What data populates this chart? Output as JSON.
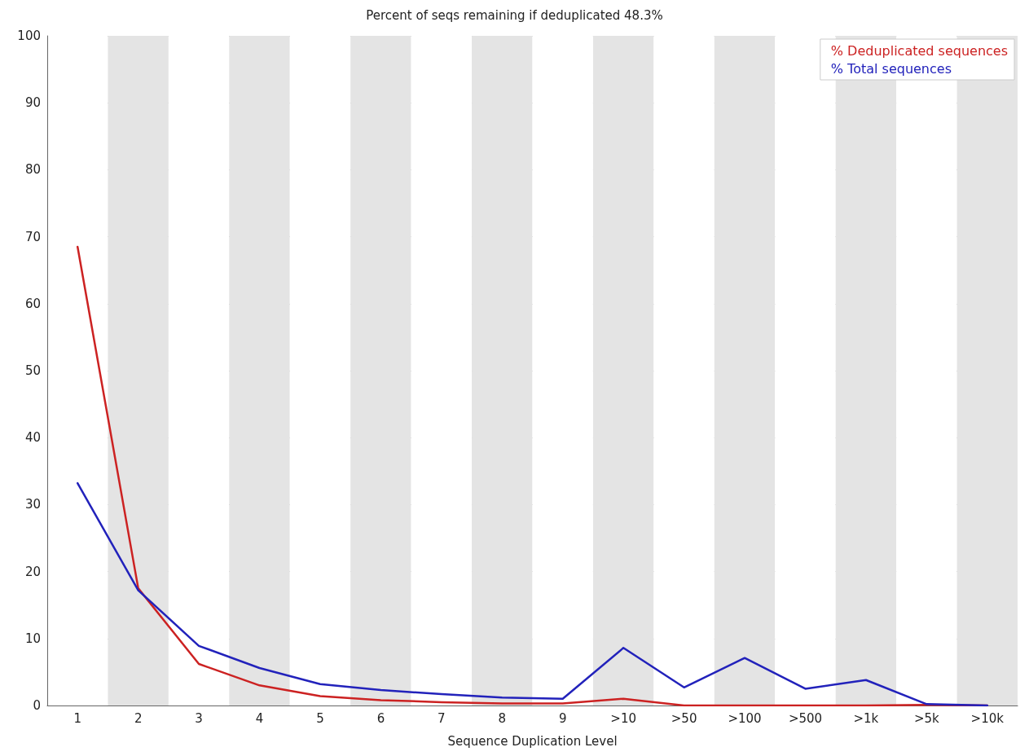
{
  "chart_data": {
    "type": "line",
    "title": "Percent of seqs remaining if deduplicated 48.3%",
    "xlabel": "Sequence Duplication Level",
    "categories": [
      "1",
      "2",
      "3",
      "4",
      "5",
      "6",
      "7",
      "8",
      "9",
      ">10",
      ">50",
      ">100",
      ">500",
      ">1k",
      ">5k",
      ">10k"
    ],
    "series": [
      {
        "name": "% Deduplicated sequences",
        "color": "#cc2222",
        "values": [
          68.5,
          17.5,
          6.2,
          3.0,
          1.4,
          0.8,
          0.5,
          0.3,
          0.3,
          1.0,
          0,
          0,
          0,
          0,
          0.1,
          0
        ]
      },
      {
        "name": "% Total sequences",
        "color": "#2222bb",
        "values": [
          33.2,
          17.2,
          8.9,
          5.6,
          3.2,
          2.3,
          1.7,
          1.2,
          1.0,
          8.6,
          2.7,
          7.1,
          2.5,
          3.8,
          0.2,
          0
        ]
      }
    ],
    "ylim": [
      0,
      100
    ],
    "yticks": [
      0,
      10,
      20,
      30,
      40,
      50,
      60,
      70,
      80,
      90,
      100
    ],
    "grid": "y",
    "legend": "top right",
    "marker": "none",
    "line_style": "solid"
  }
}
